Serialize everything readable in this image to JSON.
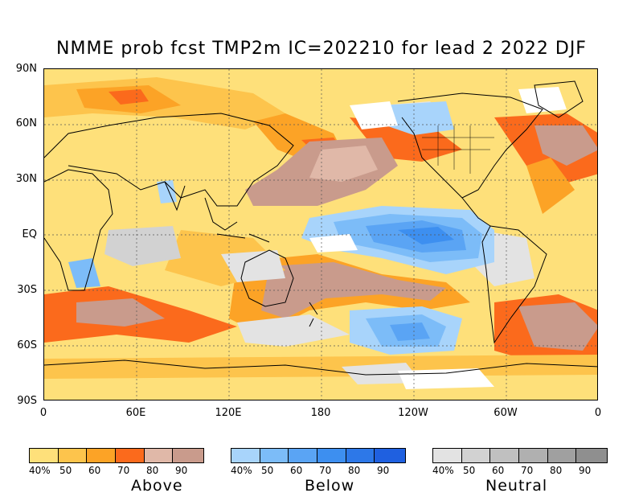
{
  "title": "NMME prob fcst TMP2m IC=202210 for lead 2 2022 DJF",
  "map": {
    "lat_labels": [
      "90N",
      "60N",
      "30N",
      "EQ",
      "30S",
      "60S",
      "90S"
    ],
    "lon_labels": [
      "0",
      "60E",
      "120E",
      "180",
      "120W",
      "60W",
      "0"
    ]
  },
  "legends": [
    {
      "name": "Above",
      "ticks": [
        "40%",
        "50",
        "60",
        "70",
        "80",
        "90"
      ],
      "colors": [
        "#fee07a",
        "#fdc44c",
        "#fca326",
        "#fb6a1c",
        "#e0b8a8",
        "#c99b8c"
      ]
    },
    {
      "name": "Below",
      "ticks": [
        "40%",
        "50",
        "60",
        "70",
        "80",
        "90"
      ],
      "colors": [
        "#a8d4fb",
        "#7cbcf8",
        "#5aa4f4",
        "#3d8ff0",
        "#2d78e8",
        "#1f60e0"
      ]
    },
    {
      "name": "Neutral",
      "ticks": [
        "40%",
        "50",
        "60",
        "70",
        "80",
        "90"
      ],
      "colors": [
        "#e3e3e3",
        "#d2d2d2",
        "#c0c0c0",
        "#b0b0b0",
        "#a0a0a0",
        "#8f8f8f"
      ]
    }
  ]
}
